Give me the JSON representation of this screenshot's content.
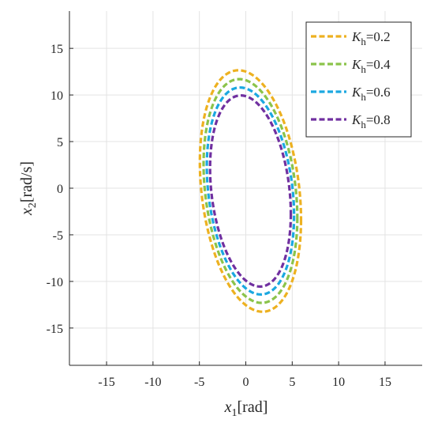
{
  "chart_data": {
    "type": "line",
    "xlabel": {
      "var": "x",
      "sub": "1",
      "unit": "[rad]"
    },
    "ylabel": {
      "var": "x",
      "sub": "2",
      "unit": "[rad/s]"
    },
    "xlim": [
      -19,
      19
    ],
    "ylim": [
      -19,
      19
    ],
    "xticks": [
      -15,
      -10,
      -5,
      0,
      5,
      10,
      15
    ],
    "yticks": [
      -15,
      -10,
      -5,
      0,
      5,
      10,
      15
    ],
    "grid": true,
    "legend_position": "top-right",
    "line_style": "dashed",
    "series": [
      {
        "name_var": "K",
        "name_sub": "h",
        "name_value": "=0.2",
        "color": "#EDB120",
        "x_center": 0.5,
        "y_center": -0.3,
        "x_amp": 5.45,
        "y_amp": 12.95,
        "phase": 0.24
      },
      {
        "name_var": "K",
        "name_sub": "h",
        "name_value": "=0.4",
        "color": "#8BC34A",
        "x_center": 0.5,
        "y_center": -0.3,
        "x_amp": 5.05,
        "y_amp": 12.0,
        "phase": 0.24
      },
      {
        "name_var": "K",
        "name_sub": "h",
        "name_value": "=0.6",
        "color": "#1BA8E0",
        "x_center": 0.5,
        "y_center": -0.3,
        "x_amp": 4.7,
        "y_amp": 11.1,
        "phase": 0.24
      },
      {
        "name_var": "K",
        "name_sub": "h",
        "name_value": "=0.8",
        "color": "#7030A0",
        "x_center": 0.5,
        "y_center": -0.3,
        "x_amp": 4.35,
        "y_amp": 10.25,
        "phase": 0.24
      }
    ]
  }
}
